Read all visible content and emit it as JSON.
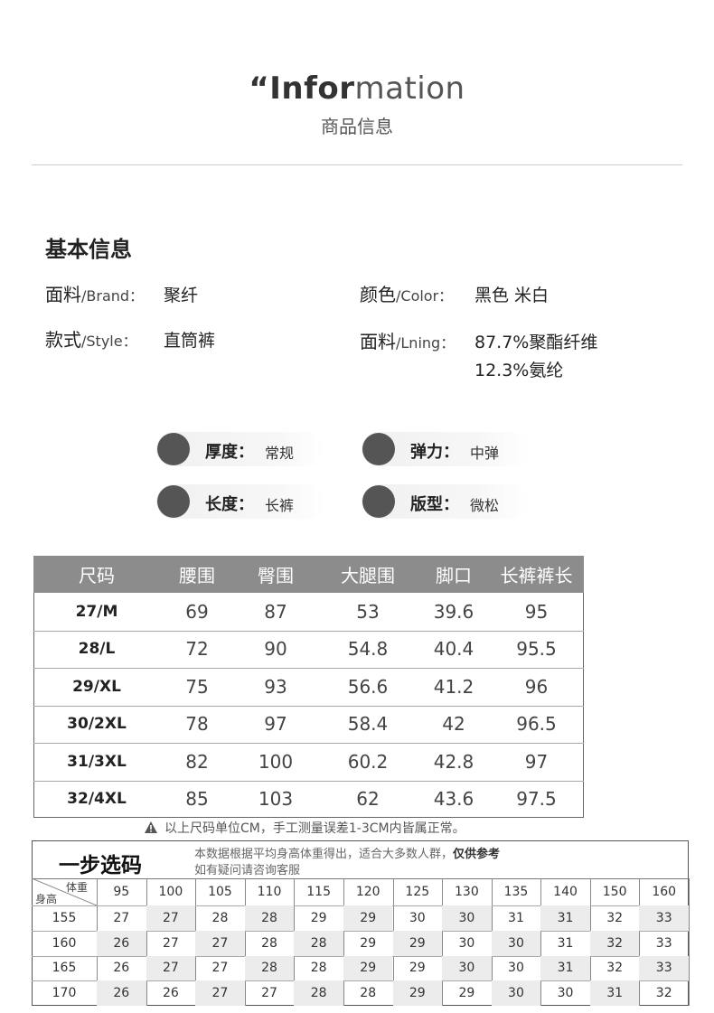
{
  "header": {
    "title_bold": "“Infor",
    "title_light": "mation",
    "subtitle": "商品信息"
  },
  "basic_info": {
    "heading": "基本信息",
    "fields": [
      {
        "label": "面料",
        "label_en": "/Brand：",
        "values": [
          "聚纤"
        ]
      },
      {
        "label": "颜色",
        "label_en": "/Color：",
        "values": [
          "黑色 米白"
        ]
      },
      {
        "label": "款式",
        "label_en": "/Style：",
        "values": [
          "直筒裤"
        ]
      },
      {
        "label": "面料",
        "label_en": "/Lning：",
        "values": [
          "87.7%聚酯纤维",
          "12.3%氨纶"
        ]
      }
    ]
  },
  "features": [
    {
      "label": "厚度：",
      "value": "常规"
    },
    {
      "label": "弹力：",
      "value": "中弹"
    },
    {
      "label": "长度：",
      "value": "长裤"
    },
    {
      "label": "版型：",
      "value": "微松"
    }
  ],
  "size_table": {
    "headers": [
      "尺码",
      "腰围",
      "臀围",
      "大腿围",
      "脚口",
      "长裤裤长"
    ],
    "rows": [
      [
        "27/M",
        69,
        87,
        53,
        39.6,
        95
      ],
      [
        "28/L",
        72,
        90,
        54.8,
        40.4,
        95.5
      ],
      [
        "29/XL",
        75,
        93,
        56.6,
        41.2,
        96
      ],
      [
        "30/2XL",
        78,
        97,
        58.4,
        42,
        96.5
      ],
      [
        "31/3XL",
        82,
        100,
        60.2,
        42.8,
        97
      ],
      [
        "32/4XL",
        85,
        103,
        62,
        43.6,
        97.5
      ]
    ]
  },
  "note": "以上尺码单位CM，手工测量误差1-3CM内皆属正常。",
  "size_guide": {
    "title": "一步选码",
    "description": "本数据根据平均身高体重得出，适合大多数人群，",
    "description_bold": "仅供参考",
    "description_2": "如有疑问请咨询客服",
    "corner_weight": "体重",
    "corner_height": "身高",
    "weights": [
      95,
      100,
      105,
      110,
      115,
      120,
      125,
      130,
      135,
      140,
      150,
      160
    ],
    "rows": [
      {
        "height": 155,
        "sizes": [
          27,
          27,
          28,
          28,
          29,
          29,
          30,
          30,
          31,
          31,
          32,
          33
        ]
      },
      {
        "height": 160,
        "sizes": [
          26,
          27,
          27,
          28,
          28,
          29,
          29,
          30,
          30,
          31,
          32,
          33
        ]
      },
      {
        "height": 165,
        "sizes": [
          26,
          27,
          27,
          28,
          28,
          29,
          29,
          30,
          30,
          31,
          32,
          33
        ]
      },
      {
        "height": 170,
        "sizes": [
          26,
          26,
          27,
          27,
          28,
          28,
          29,
          29,
          30,
          30,
          31,
          32
        ]
      }
    ]
  }
}
